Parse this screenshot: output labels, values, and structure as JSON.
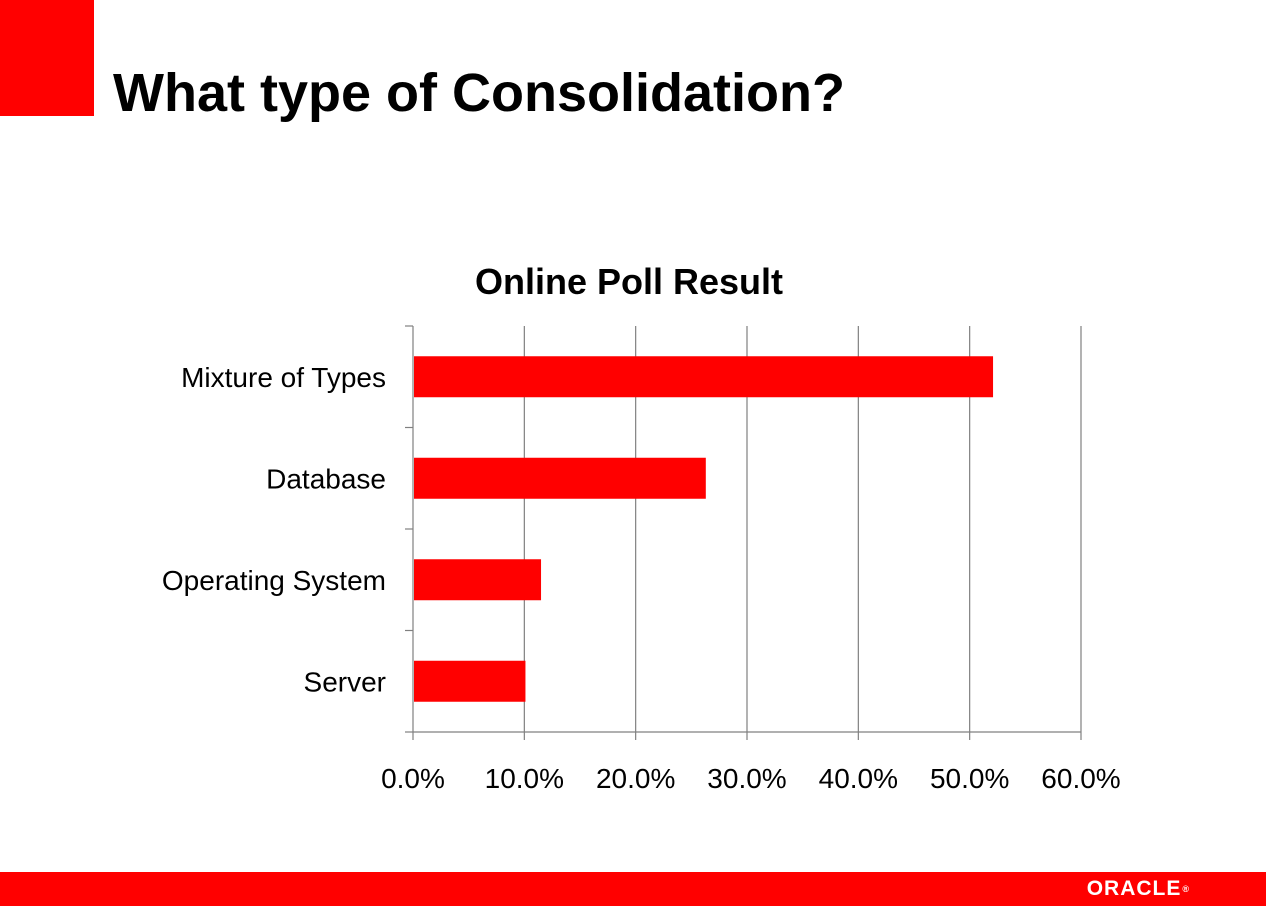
{
  "slide": {
    "title": "What type of Consolidation?"
  },
  "footer": {
    "logo_text": "ORACLE",
    "logo_mark": "®"
  },
  "colors": {
    "accent": "#ff0000",
    "gridline": "#808080",
    "text": "#000000"
  },
  "chart_data": {
    "type": "bar",
    "orientation": "horizontal",
    "title": "Online Poll Result",
    "xlabel": "",
    "ylabel": "",
    "categories": [
      "Mixture of Types",
      "Database",
      "Operating System",
      "Server"
    ],
    "values": [
      52.1,
      26.3,
      11.5,
      10.1
    ],
    "value_unit": "%",
    "xlim": [
      0,
      60
    ],
    "xticks": [
      "0.0%",
      "10.0%",
      "20.0%",
      "30.0%",
      "40.0%",
      "50.0%",
      "60.0%"
    ],
    "grid": true,
    "legend": "none",
    "bar_color": "#ff0000"
  }
}
